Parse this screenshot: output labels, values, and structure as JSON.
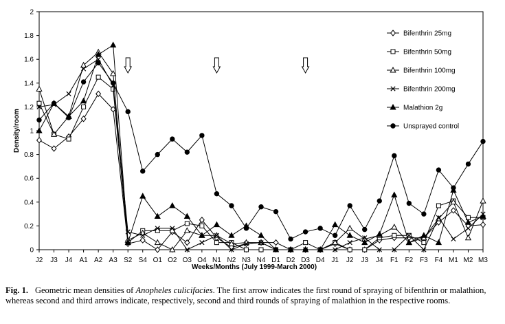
{
  "chart_data": {
    "type": "line",
    "xlabel": "Weeks/Months (July 1999-March 2000)",
    "ylabel": "Density/room",
    "ylim": [
      0,
      2
    ],
    "yticks": [
      "0",
      "0.2",
      "0.4",
      "0.6",
      "0.8",
      "1",
      "1.2",
      "1.4",
      "1.6",
      "1.8",
      "2"
    ],
    "categories": [
      "J2",
      "J3",
      "J4",
      "A1",
      "A2",
      "A3",
      "S2",
      "S4",
      "O1",
      "O2",
      "O3",
      "O4",
      "N1",
      "N2",
      "N3",
      "N4",
      "D1",
      "D2",
      "D3",
      "D4",
      "J1",
      "J2",
      "J3",
      "J4",
      "F1",
      "F2",
      "F3",
      "F4",
      "M1",
      "M2",
      "M3"
    ],
    "grid": false,
    "legend_position": "top-right",
    "arrows_at": [
      "S2",
      "N1",
      "D3"
    ],
    "series": [
      {
        "name": "Bifenthrin 25mg",
        "marker": "diamond-open",
        "values": [
          0.92,
          0.85,
          0.95,
          1.1,
          1.31,
          1.18,
          0.05,
          0.08,
          0.0,
          0.15,
          0.06,
          0.25,
          0.1,
          0.02,
          0.05,
          0.06,
          0.06,
          0.0,
          0.0,
          0.0,
          0.05,
          0.0,
          0.0,
          0.08,
          0.1,
          0.1,
          0.1,
          0.23,
          0.33,
          0.2,
          0.21
        ]
      },
      {
        "name": "Bifenthrin 50mg",
        "marker": "square-open",
        "values": [
          1.23,
          0.97,
          0.93,
          1.2,
          1.45,
          1.35,
          0.06,
          0.16,
          0.16,
          0.16,
          0.22,
          0.2,
          0.06,
          0.06,
          0.0,
          0.0,
          0.0,
          0.0,
          0.06,
          0.0,
          0.06,
          0.0,
          0.0,
          0.1,
          0.12,
          0.12,
          0.06,
          0.37,
          0.41,
          0.27,
          0.27
        ]
      },
      {
        "name": "Bifenthrin 100mg",
        "marker": "triangle-open",
        "values": [
          1.35,
          0.97,
          1.12,
          1.55,
          1.66,
          1.48,
          0.08,
          0.14,
          0.06,
          0.0,
          0.16,
          0.12,
          0.12,
          0.05,
          0.06,
          0.06,
          0.0,
          0.0,
          0.0,
          0.0,
          0.06,
          0.18,
          0.09,
          0.12,
          0.19,
          0.06,
          0.1,
          0.26,
          0.4,
          0.1,
          0.41
        ]
      },
      {
        "name": "Bifenthrin 200mg",
        "marker": "x",
        "values": [
          1.2,
          1.22,
          1.31,
          1.52,
          1.6,
          1.38,
          0.15,
          0.12,
          0.18,
          0.18,
          0.0,
          0.06,
          0.12,
          0.0,
          0.05,
          0.06,
          0.0,
          0.0,
          0.0,
          0.0,
          0.0,
          0.06,
          0.1,
          0.0,
          0.0,
          0.12,
          0.0,
          0.27,
          0.09,
          0.18,
          0.3
        ]
      },
      {
        "name": "Malathion 2g",
        "marker": "triangle-filled",
        "values": [
          1.0,
          1.23,
          1.12,
          1.25,
          1.64,
          1.72,
          0.06,
          0.45,
          0.28,
          0.37,
          0.28,
          0.12,
          0.21,
          0.12,
          0.2,
          0.12,
          0.0,
          0.0,
          0.0,
          0.0,
          0.21,
          0.12,
          0.06,
          0.13,
          0.46,
          0.06,
          0.12,
          0.06,
          0.5,
          0.23,
          0.28
        ]
      },
      {
        "name": "Unsprayed control",
        "marker": "circle-filled",
        "values": [
          1.09,
          1.23,
          1.11,
          1.41,
          1.57,
          1.4,
          1.16,
          0.66,
          0.8,
          0.93,
          0.82,
          0.96,
          0.47,
          0.37,
          0.18,
          0.36,
          0.32,
          0.09,
          0.15,
          0.18,
          0.12,
          0.37,
          0.17,
          0.41,
          0.79,
          0.39,
          0.3,
          0.67,
          0.52,
          0.72,
          0.91
        ]
      }
    ]
  },
  "caption": {
    "label": "Fig. 1.",
    "pre": "Geometric mean densities of ",
    "species": "Anopheles culicifacies",
    "post": ". The first arrow indicates the first round of spraying of bifenthrin or malathion, whereas second and third arrows indicate, respectively, second and third rounds of spraying of malathion in the respective rooms."
  }
}
